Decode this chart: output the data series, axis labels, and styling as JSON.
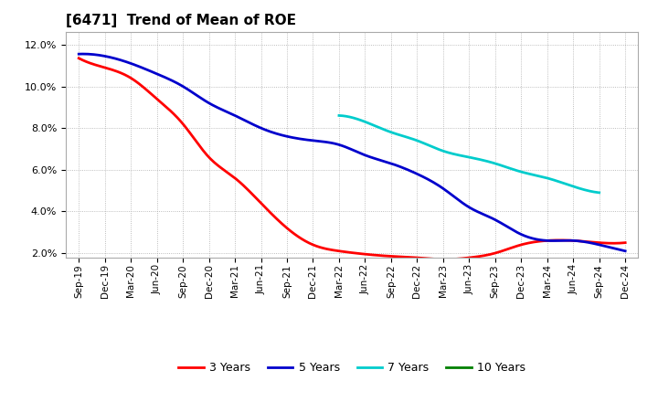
{
  "title": "[6471]  Trend of Mean of ROE",
  "background_color": "#ffffff",
  "plot_background_color": "#ffffff",
  "grid_color": "#aaaaaa",
  "ylim": [
    0.018,
    0.126
  ],
  "yticks": [
    0.02,
    0.04,
    0.06,
    0.08,
    0.1,
    0.12
  ],
  "series": {
    "3 Years": {
      "color": "#ff0000",
      "x_indices": [
        0,
        1,
        2,
        3,
        4,
        5,
        6,
        7,
        8,
        9,
        10,
        11,
        12,
        13,
        14,
        15,
        16,
        17,
        18,
        19,
        20,
        21
      ],
      "values": [
        0.1135,
        0.109,
        0.104,
        0.094,
        0.082,
        0.066,
        0.056,
        0.044,
        0.032,
        0.024,
        0.021,
        0.0195,
        0.0185,
        0.0178,
        0.017,
        0.0178,
        0.02,
        0.024,
        0.026,
        0.026,
        0.025,
        0.025
      ]
    },
    "5 Years": {
      "color": "#0000cc",
      "x_indices": [
        0,
        1,
        2,
        3,
        4,
        5,
        6,
        7,
        8,
        9,
        10,
        11,
        12,
        13,
        14,
        15,
        16,
        17,
        18,
        19,
        20,
        21
      ],
      "values": [
        0.1155,
        0.1145,
        0.111,
        0.106,
        0.1,
        0.092,
        0.086,
        0.08,
        0.076,
        0.074,
        0.072,
        0.067,
        0.063,
        0.058,
        0.051,
        0.042,
        0.036,
        0.029,
        0.026,
        0.026,
        0.024,
        0.021
      ]
    },
    "7 Years": {
      "color": "#00cccc",
      "x_indices": [
        10,
        11,
        12,
        13,
        14,
        15,
        16,
        17,
        18,
        19,
        20
      ],
      "values": [
        0.086,
        0.083,
        0.078,
        0.074,
        0.069,
        0.066,
        0.063,
        0.059,
        0.056,
        0.052,
        0.049
      ]
    },
    "10 Years": {
      "color": "#008000",
      "x_indices": [],
      "values": []
    }
  },
  "x_tick_labels": [
    "Sep-19",
    "Dec-19",
    "Mar-20",
    "Jun-20",
    "Sep-20",
    "Dec-20",
    "Mar-21",
    "Jun-21",
    "Sep-21",
    "Dec-21",
    "Mar-22",
    "Jun-22",
    "Sep-22",
    "Dec-22",
    "Mar-23",
    "Jun-23",
    "Sep-23",
    "Dec-23",
    "Mar-24",
    "Jun-24",
    "Sep-24",
    "Dec-24"
  ],
  "legend_labels": [
    "3 Years",
    "5 Years",
    "7 Years",
    "10 Years"
  ],
  "legend_colors": [
    "#ff0000",
    "#0000cc",
    "#00cccc",
    "#008000"
  ],
  "title_fontsize": 11,
  "tick_fontsize": 7.5,
  "legend_fontsize": 9
}
